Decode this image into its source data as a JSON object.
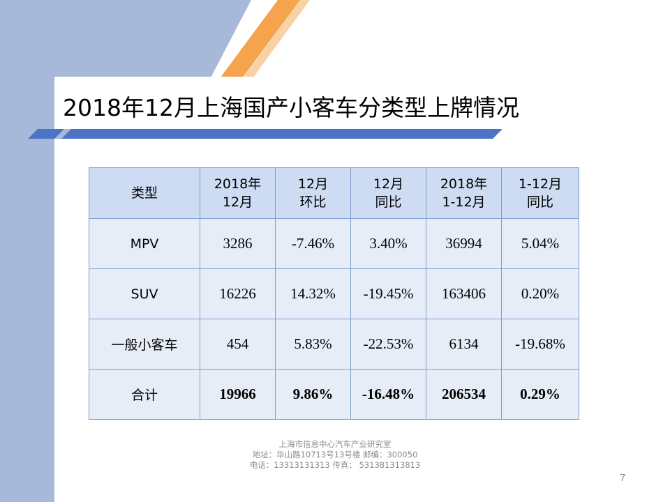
{
  "title": "2018年12月上海国产小客车分类型上牌情况",
  "table": {
    "headers": [
      [
        "类型"
      ],
      [
        "2018年",
        "12月"
      ],
      [
        "12月",
        "环比"
      ],
      [
        "12月",
        "同比"
      ],
      [
        "2018年",
        "1-12月"
      ],
      [
        "1-12月",
        "同比"
      ]
    ],
    "rows": [
      [
        "MPV",
        "3286",
        "-7.46%",
        "3.40%",
        "36994",
        "5.04%"
      ],
      [
        "SUV",
        "16226",
        "14.32%",
        "-19.45%",
        "163406",
        "0.20%"
      ],
      [
        "一般小客车",
        "454",
        "5.83%",
        "-22.53%",
        "6134",
        "-19.68%"
      ],
      [
        "合计",
        "19966",
        "9.86%",
        "-16.48%",
        "206534",
        "0.29%"
      ]
    ]
  },
  "footer": {
    "line1": "上海市信息中心汽车产业研究室",
    "line2": "地址：华山路10713号13号楼    邮编：300050",
    "line3": "电话：13313131313  传真：  531381313813"
  },
  "page_number": "7",
  "colors": {
    "header_fill": "#cddcf2",
    "body_fill": "#e7edf7",
    "border": "#7f9bcf",
    "accent_orange": "#f5a44d",
    "accent_blue": "#4d74c4",
    "side_band": "#a7b9d9"
  }
}
